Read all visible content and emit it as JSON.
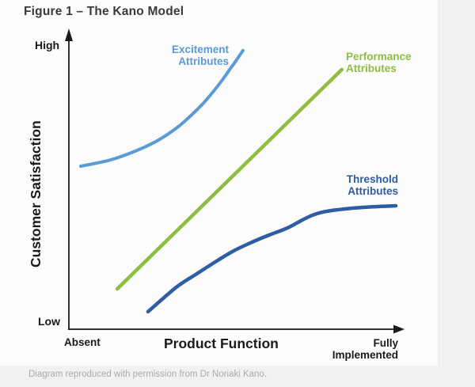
{
  "figure": {
    "title": "Figure 1 – The Kano Model",
    "caption": "Diagram reproduced with permission from Dr Noriaki Kano."
  },
  "colors": {
    "excitement": "#5b9bd5",
    "performance": "#8ebe3f",
    "threshold": "#2e5da4",
    "axis": "#1a1a1a",
    "title_text": "#3a3a3a",
    "caption_text": "#a9abad",
    "background": "#fcfcfc",
    "page_edge": "#f1f1f2"
  },
  "axes": {
    "y_title": "Customer Satisfaction",
    "y_max": "High",
    "y_min": "Low",
    "x_title": "Product Function",
    "x_min": "Absent",
    "x_max": "Fully\nImplemented"
  },
  "labels": {
    "excitement": "Excitement\nAttributes",
    "performance": "Performance\nAttributes",
    "threshold": "Threshold\nAttributes"
  },
  "chart_data": {
    "type": "line",
    "title": "Figure 1 – The Kano Model",
    "xlabel": "Product Function",
    "ylabel": "Customer Satisfaction",
    "x_range_labels": [
      "Absent",
      "Fully Implemented"
    ],
    "y_range_labels": [
      "Low",
      "High"
    ],
    "axes_quantitative": false,
    "grid": false,
    "legend": "inline labels next to each curve",
    "note": "Qualitative Kano model; point coordinates normalized 0-1 (x: Absent to Fully Implemented, y: Low to High), read from the drawing.",
    "series": [
      {
        "name": "Excitement Attributes",
        "color": "#5b9bd5",
        "shape": "convex exponential rise",
        "stroke_width": 4,
        "points": [
          [
            0.036,
            0.554
          ],
          [
            0.127,
            0.576
          ],
          [
            0.206,
            0.608
          ],
          [
            0.27,
            0.643
          ],
          [
            0.325,
            0.684
          ],
          [
            0.366,
            0.724
          ],
          [
            0.407,
            0.77
          ],
          [
            0.438,
            0.811
          ],
          [
            0.462,
            0.846
          ],
          [
            0.486,
            0.884
          ],
          [
            0.505,
            0.914
          ],
          [
            0.526,
            0.949
          ]
        ]
      },
      {
        "name": "Performance Attributes",
        "color": "#8ebe3f",
        "shape": "straight diagonal line",
        "stroke_width": 4.5,
        "points": [
          [
            0.146,
            0.135
          ],
          [
            0.825,
            0.884
          ]
        ]
      },
      {
        "name": "Threshold Attributes",
        "color": "#2e5da4",
        "shape": "concave saturating curve",
        "stroke_width": 4.5,
        "points": [
          [
            0.239,
            0.057
          ],
          [
            0.325,
            0.141
          ],
          [
            0.383,
            0.184
          ],
          [
            0.438,
            0.224
          ],
          [
            0.493,
            0.262
          ],
          [
            0.548,
            0.292
          ],
          [
            0.605,
            0.319
          ],
          [
            0.66,
            0.343
          ],
          [
            0.749,
            0.392
          ],
          [
            0.861,
            0.411
          ],
          [
            0.988,
            0.419
          ]
        ]
      }
    ]
  }
}
